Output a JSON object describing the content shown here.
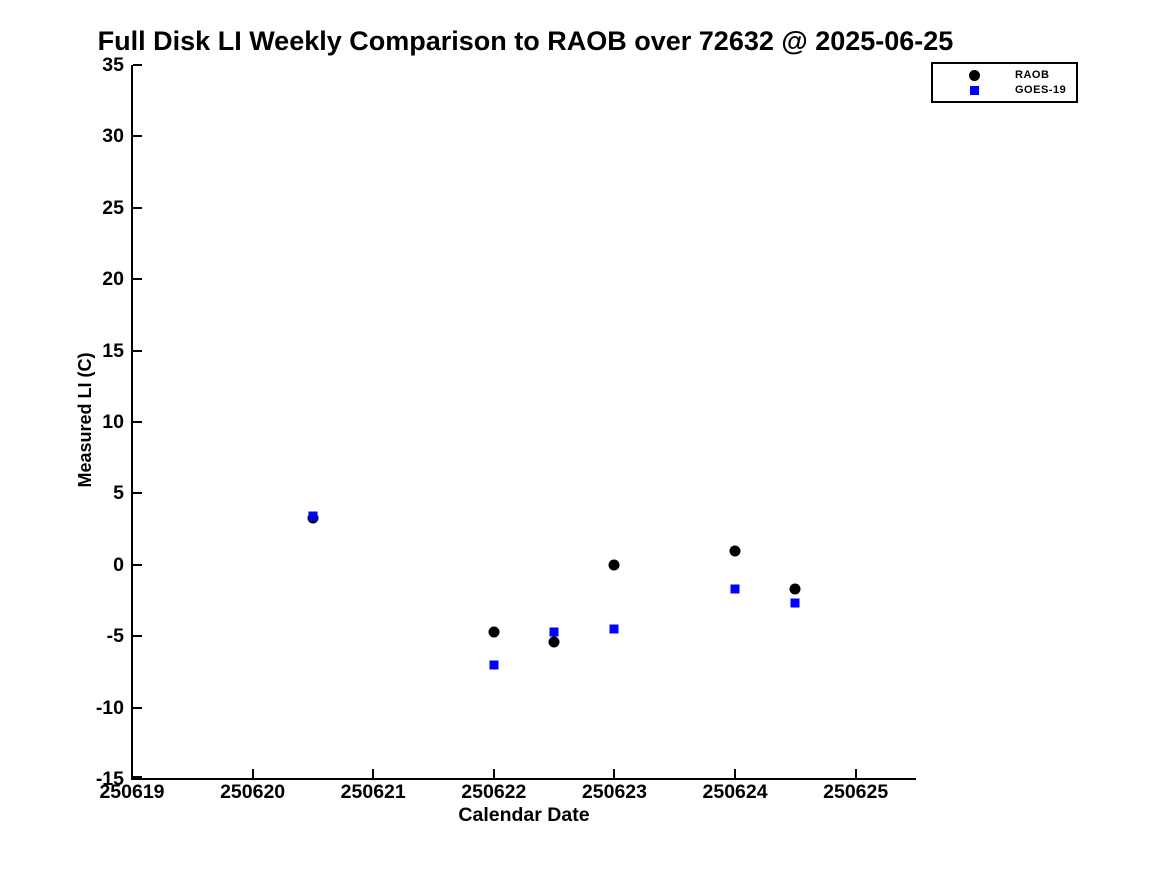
{
  "title": "Full Disk LI Weekly Comparison to RAOB over 72632 @ 2025-06-25",
  "colors": {
    "raob": "#000000",
    "goes19": "#0000ff",
    "axis": "#000000",
    "background": "#ffffff",
    "text": "#000000"
  },
  "chart_data": {
    "type": "scatter",
    "title": "Full Disk LI Weekly Comparison to RAOB over 72632 @ 2025-06-25",
    "xlabel": "Calendar Date",
    "ylabel": "Measured LI (C)",
    "xlim": [
      250619,
      250625.5
    ],
    "ylim": [
      -15,
      35
    ],
    "xticks": [
      250619,
      250620,
      250621,
      250622,
      250623,
      250624,
      250625
    ],
    "yticks": [
      35,
      30,
      25,
      20,
      15,
      10,
      5,
      0,
      -5,
      -10,
      -15
    ],
    "grid": false,
    "legend_position": "top-right",
    "series": [
      {
        "name": "RAOB",
        "marker": "circle",
        "color": "#000000",
        "points": [
          [
            250620.5,
            3.3
          ],
          [
            250622.0,
            -4.7
          ],
          [
            250622.5,
            -5.4
          ],
          [
            250623.0,
            0.0
          ],
          [
            250624.0,
            1.0
          ],
          [
            250624.5,
            -1.7
          ]
        ]
      },
      {
        "name": "GOES-19",
        "marker": "square",
        "color": "#0000ff",
        "points": [
          [
            250620.5,
            3.4
          ],
          [
            250622.0,
            -7.0
          ],
          [
            250622.5,
            -4.7
          ],
          [
            250623.0,
            -4.5
          ],
          [
            250624.0,
            -1.7
          ],
          [
            250624.5,
            -2.7
          ]
        ]
      }
    ]
  }
}
